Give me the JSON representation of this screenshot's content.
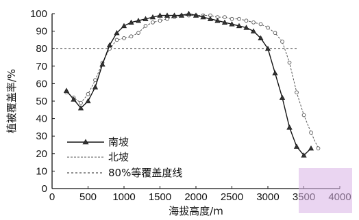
{
  "chart_data": {
    "type": "line",
    "xlabel": "海拔高度/m",
    "ylabel": "植被覆盖率/%",
    "xlim": [
      0,
      4000
    ],
    "ylim": [
      0,
      100
    ],
    "xticks": [
      0,
      500,
      1000,
      1500,
      2000,
      2500,
      3000,
      3500,
      4000
    ],
    "yticks": [
      0,
      10,
      20,
      30,
      40,
      50,
      60,
      70,
      80,
      90,
      100
    ],
    "grid": false,
    "legend_position": "bottom-left",
    "series": [
      {
        "name": "南坡",
        "style": "solid-triangle",
        "x": [
          200,
          300,
          400,
          500,
          600,
          700,
          800,
          900,
          1000,
          1100,
          1200,
          1300,
          1400,
          1500,
          1600,
          1700,
          1800,
          1900,
          2000,
          2100,
          2200,
          2300,
          2400,
          2500,
          2600,
          2700,
          2800,
          2900,
          3000,
          3100,
          3200,
          3300,
          3400,
          3500,
          3600
        ],
        "y": [
          56,
          51,
          46,
          50,
          58,
          71,
          82,
          89,
          93,
          95,
          96,
          97,
          98,
          99,
          99,
          99,
          99,
          100,
          99,
          98,
          97,
          96,
          95,
          94,
          93,
          92,
          90,
          86,
          80,
          66,
          52,
          35,
          24,
          19,
          23
        ]
      },
      {
        "name": "北坡",
        "style": "dashed-circle",
        "x": [
          200,
          300,
          400,
          500,
          600,
          700,
          800,
          900,
          1000,
          1100,
          1200,
          1300,
          1400,
          1500,
          1600,
          1700,
          1800,
          1900,
          2000,
          2100,
          2200,
          2300,
          2400,
          2500,
          2600,
          2700,
          2800,
          2900,
          3000,
          3100,
          3200,
          3300,
          3400,
          3500,
          3600,
          3700
        ],
        "y": [
          55,
          52,
          49,
          54,
          62,
          72,
          80,
          85,
          86,
          87,
          89,
          93,
          95,
          96,
          97,
          98,
          99,
          99,
          99,
          99,
          99,
          98,
          98,
          97,
          97,
          96,
          95,
          94,
          92,
          89,
          84,
          72,
          55,
          42,
          32,
          23
        ]
      },
      {
        "name": "80%等覆盖度线",
        "style": "dashed-reference",
        "x": [
          0,
          3400
        ],
        "y": [
          80,
          80
        ]
      }
    ]
  },
  "colors": {
    "south": "#111111",
    "north": "#555555",
    "reference": "#222222",
    "watermark": "#d9b3e6"
  },
  "icons": {
    "watermark": "logo-watermark"
  }
}
